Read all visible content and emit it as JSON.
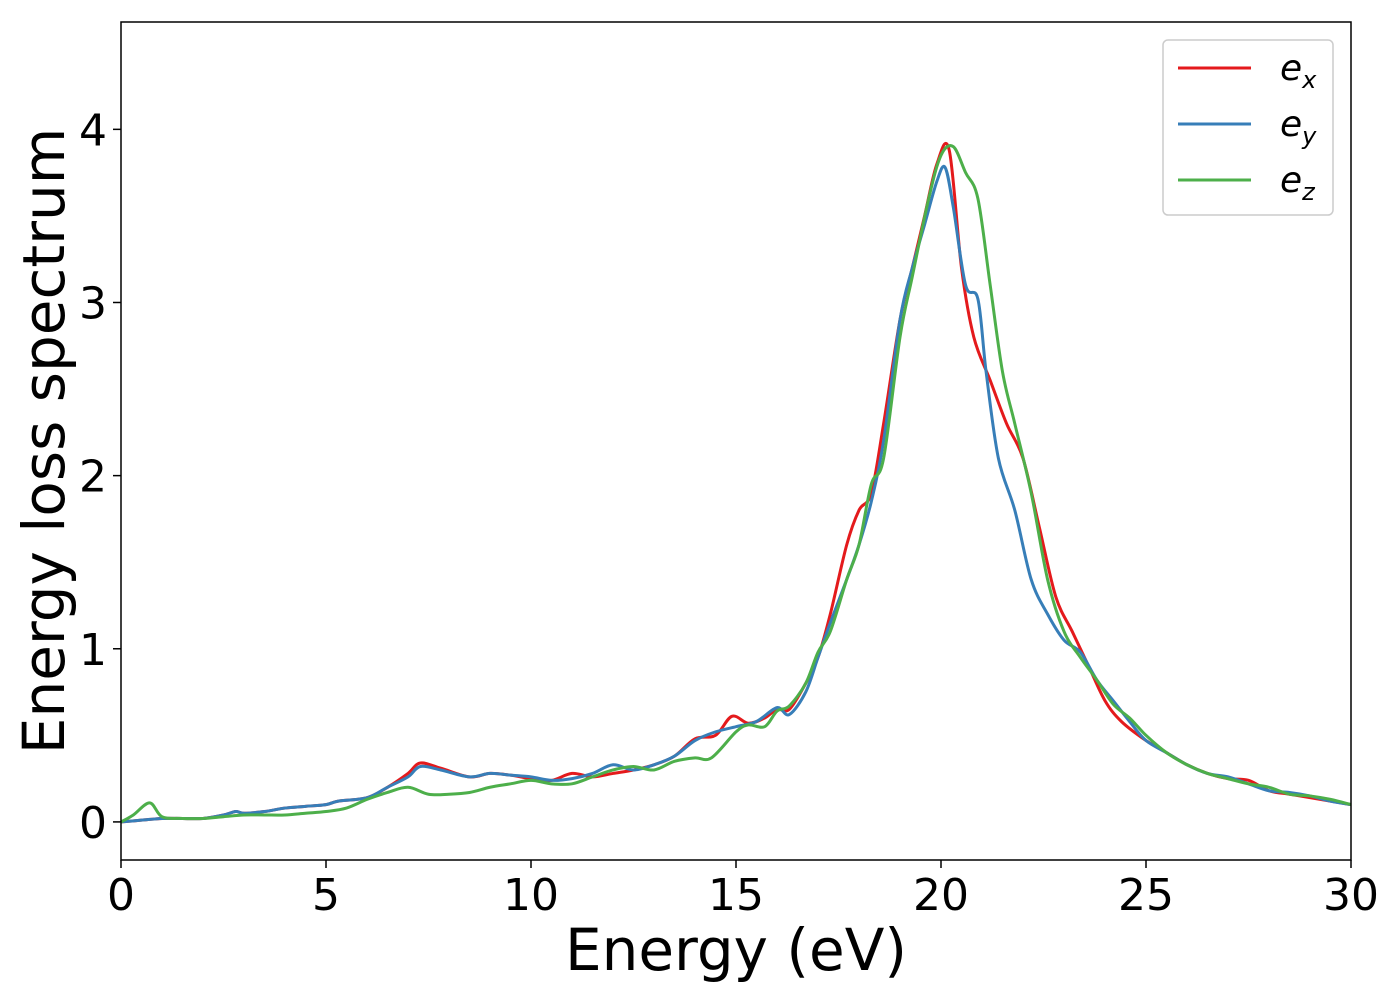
{
  "chart_data": {
    "type": "line",
    "title": "",
    "xlabel": "Energy (eV)",
    "ylabel": "Energy loss spectrum",
    "xlim": [
      0,
      30
    ],
    "ylim": [
      -0.22,
      4.62
    ],
    "xticks": [
      "0",
      "5",
      "10",
      "15",
      "20",
      "25",
      "30"
    ],
    "yticks": [
      "0",
      "1",
      "2",
      "3",
      "4"
    ],
    "grid": false,
    "legend": "top-right",
    "series": [
      {
        "name": "e_x",
        "base": "e",
        "sub": "x",
        "color": "#e41a1c",
        "x": [
          0,
          0.5,
          1,
          1.5,
          2,
          2.5,
          2.8,
          3,
          3.5,
          4,
          4.5,
          5,
          5.3,
          6,
          6.5,
          7,
          7.3,
          7.8,
          8.5,
          9,
          9.5,
          10,
          10.5,
          11,
          11.5,
          12,
          12.5,
          13,
          13.5,
          14,
          14.5,
          14.9,
          15.3,
          15.7,
          16,
          16.3,
          16.7,
          17,
          17.3,
          17.7,
          18,
          18.3,
          18.6,
          19,
          19.3,
          19.6,
          19.9,
          20.2,
          20.5,
          20.8,
          21.2,
          21.6,
          22,
          22.4,
          22.8,
          23.2,
          23.6,
          24,
          24.4,
          25,
          25.5,
          26,
          26.5,
          27,
          27.5,
          28,
          28.5,
          29,
          29.5,
          30
        ],
        "y": [
          0,
          0.01,
          0.02,
          0.02,
          0.02,
          0.04,
          0.06,
          0.05,
          0.06,
          0.08,
          0.09,
          0.1,
          0.12,
          0.14,
          0.2,
          0.28,
          0.34,
          0.31,
          0.26,
          0.28,
          0.27,
          0.25,
          0.24,
          0.28,
          0.26,
          0.28,
          0.3,
          0.33,
          0.38,
          0.48,
          0.5,
          0.61,
          0.57,
          0.6,
          0.65,
          0.65,
          0.8,
          0.95,
          1.2,
          1.6,
          1.8,
          1.9,
          2.3,
          2.9,
          3.2,
          3.5,
          3.8,
          3.88,
          3.2,
          2.8,
          2.55,
          2.3,
          2.1,
          1.7,
          1.3,
          1.1,
          0.9,
          0.7,
          0.58,
          0.47,
          0.4,
          0.33,
          0.28,
          0.25,
          0.24,
          0.18,
          0.16,
          0.14,
          0.12,
          0.1
        ]
      },
      {
        "name": "e_y",
        "base": "e",
        "sub": "y",
        "color": "#377eb8",
        "x": [
          0,
          0.5,
          1,
          1.5,
          2,
          2.5,
          2.8,
          3,
          3.5,
          4,
          4.5,
          5,
          5.3,
          6,
          6.5,
          7,
          7.3,
          7.8,
          8.5,
          9,
          9.5,
          10,
          10.5,
          11,
          11.5,
          12,
          12.5,
          13,
          13.5,
          14,
          14.5,
          15,
          15.5,
          16,
          16.3,
          16.7,
          17,
          17.3,
          17.7,
          18,
          18.3,
          18.6,
          19,
          19.3,
          19.6,
          19.9,
          20.1,
          20.3,
          20.6,
          20.9,
          21.1,
          21.4,
          21.8,
          22.2,
          22.6,
          23,
          23.4,
          23.8,
          24.2,
          24.6,
          25,
          25.5,
          26,
          26.5,
          27,
          27.5,
          28,
          28.5,
          29,
          29.5,
          30
        ],
        "y": [
          0,
          0.01,
          0.02,
          0.02,
          0.02,
          0.04,
          0.06,
          0.05,
          0.06,
          0.08,
          0.09,
          0.1,
          0.12,
          0.14,
          0.2,
          0.26,
          0.32,
          0.3,
          0.26,
          0.28,
          0.27,
          0.26,
          0.24,
          0.25,
          0.28,
          0.33,
          0.3,
          0.33,
          0.38,
          0.47,
          0.52,
          0.55,
          0.58,
          0.66,
          0.62,
          0.75,
          0.95,
          1.15,
          1.4,
          1.6,
          1.85,
          2.2,
          2.9,
          3.2,
          3.45,
          3.7,
          3.78,
          3.55,
          3.1,
          3.02,
          2.6,
          2.1,
          1.8,
          1.4,
          1.2,
          1.05,
          0.98,
          0.82,
          0.7,
          0.58,
          0.47,
          0.4,
          0.33,
          0.28,
          0.26,
          0.22,
          0.18,
          0.17,
          0.15,
          0.12,
          0.1
        ]
      },
      {
        "name": "e_z",
        "base": "e",
        "sub": "z",
        "color": "#4daf4a",
        "x": [
          0,
          0.3,
          0.7,
          1,
          1.5,
          2,
          2.5,
          3,
          3.5,
          4,
          4.5,
          5,
          5.5,
          6,
          6.5,
          7,
          7.5,
          8,
          8.5,
          9,
          9.5,
          10,
          10.5,
          11,
          11.5,
          12,
          12.5,
          13,
          13.5,
          14,
          14.4,
          15,
          15.3,
          15.7,
          16,
          16.3,
          16.7,
          17,
          17.3,
          17.7,
          18,
          18.3,
          18.6,
          19,
          19.3,
          19.7,
          20,
          20.3,
          20.6,
          20.9,
          21.2,
          21.5,
          21.8,
          22.2,
          22.6,
          23,
          23.4,
          23.8,
          24.2,
          24.6,
          25,
          25.5,
          26,
          26.5,
          27,
          27.5,
          28,
          28.5,
          29,
          29.5,
          30
        ],
        "y": [
          0,
          0.04,
          0.11,
          0.03,
          0.02,
          0.02,
          0.03,
          0.04,
          0.04,
          0.04,
          0.05,
          0.06,
          0.08,
          0.13,
          0.17,
          0.2,
          0.16,
          0.16,
          0.17,
          0.2,
          0.22,
          0.24,
          0.22,
          0.22,
          0.26,
          0.3,
          0.32,
          0.3,
          0.35,
          0.37,
          0.37,
          0.52,
          0.56,
          0.55,
          0.64,
          0.67,
          0.8,
          0.98,
          1.1,
          1.4,
          1.6,
          1.95,
          2.1,
          2.8,
          3.15,
          3.6,
          3.85,
          3.9,
          3.75,
          3.6,
          3.1,
          2.6,
          2.3,
          1.9,
          1.4,
          1.1,
          0.95,
          0.82,
          0.68,
          0.6,
          0.5,
          0.4,
          0.33,
          0.28,
          0.25,
          0.22,
          0.2,
          0.16,
          0.15,
          0.13,
          0.1
        ]
      }
    ]
  }
}
